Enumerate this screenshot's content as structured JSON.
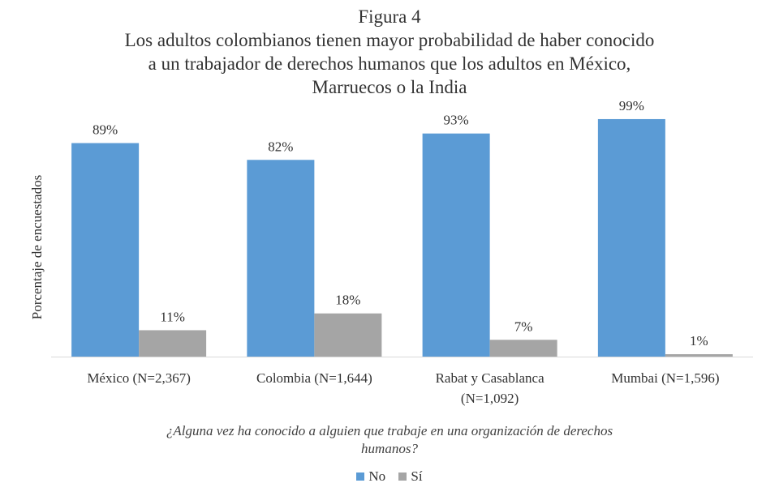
{
  "chart_data": {
    "type": "bar",
    "figure_label": "Figura 4",
    "title_lines": [
      "Los adultos colombianos tienen mayor probabilidad de haber conocido",
      "a un trabajador de derechos humanos que los adultos en México,",
      "Marruecos o la India"
    ],
    "ylabel": "Porcentaje de encuestados",
    "xlabel_lines": [
      "¿Alguna vez ha conocido a alguien que trabaje en una organización de derechos",
      "humanos?"
    ],
    "categories": [
      [
        "México (N=2,367)"
      ],
      [
        "Colombia (N=1,644)"
      ],
      [
        "Rabat y Casablanca",
        "(N=1,092)"
      ],
      [
        "Mumbai (N=1,596)"
      ]
    ],
    "series": [
      {
        "name": "No",
        "color": "#5b9bd5",
        "values": [
          89,
          82,
          93,
          99
        ],
        "labels": [
          "89%",
          "82%",
          "93%",
          "99%"
        ]
      },
      {
        "name": "Sí",
        "color": "#a5a5a5",
        "values": [
          11,
          18,
          7,
          1
        ],
        "labels": [
          "11%",
          "18%",
          "7%",
          "1%"
        ]
      }
    ],
    "ylim": [
      0,
      100
    ],
    "grid": false,
    "legend_position": "bottom"
  }
}
